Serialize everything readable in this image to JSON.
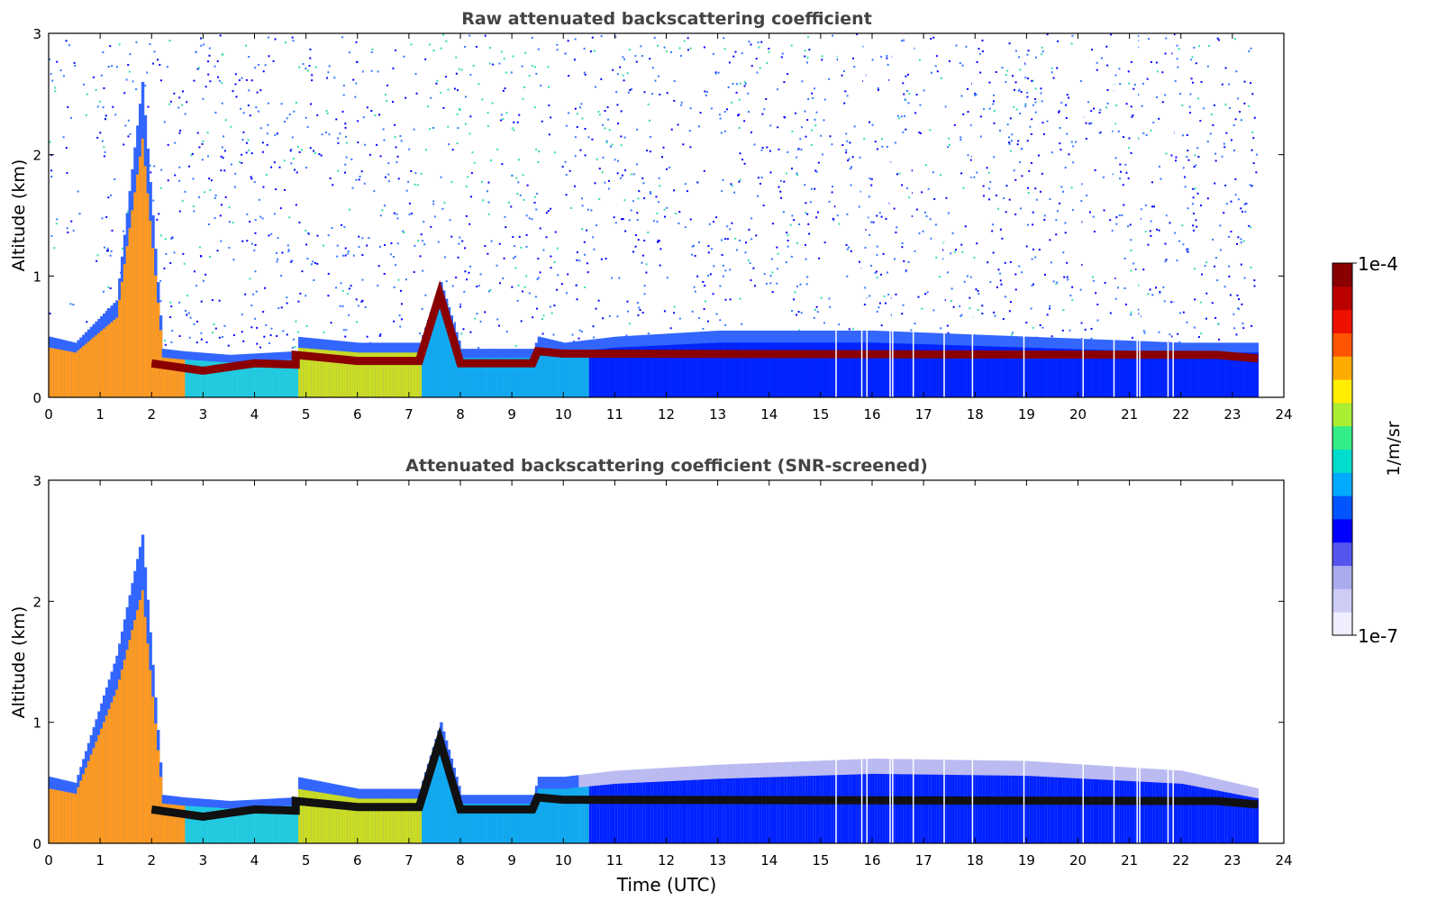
{
  "chart_data": [
    {
      "type": "heatmap",
      "id": "raw",
      "title": "Raw attenuated backscattering coefficient",
      "xlabel": "",
      "ylabel": "Altitude (km)",
      "xlim": [
        0,
        24
      ],
      "ylim": [
        0,
        3
      ],
      "xticks": [
        "0",
        "1",
        "2",
        "3",
        "4",
        "5",
        "6",
        "7",
        "8",
        "9",
        "10",
        "11",
        "12",
        "13",
        "14",
        "15",
        "16",
        "17",
        "18",
        "19",
        "20",
        "21",
        "22",
        "23",
        "24"
      ],
      "yticks": [
        "0",
        "1",
        "2",
        "3"
      ],
      "data_end_hour": 23.5,
      "boundary_layer_top_km": [
        [
          0,
          0.5
        ],
        [
          0.5,
          0.45
        ],
        [
          1.3,
          0.8
        ],
        [
          1.8,
          2.6
        ],
        [
          2.2,
          0.4
        ],
        [
          2.6,
          0.38
        ],
        [
          3.5,
          0.35
        ],
        [
          4.8,
          0.38
        ],
        [
          4.8,
          0.5
        ],
        [
          6,
          0.45
        ],
        [
          7.2,
          0.45
        ],
        [
          7.6,
          0.95
        ],
        [
          8,
          0.4
        ],
        [
          9.4,
          0.4
        ],
        [
          9.5,
          0.5
        ],
        [
          10,
          0.45
        ],
        [
          11,
          0.5
        ],
        [
          13,
          0.55
        ],
        [
          16,
          0.55
        ],
        [
          19,
          0.5
        ],
        [
          22,
          0.45
        ],
        [
          23.5,
          0.45
        ]
      ],
      "dense_layer_km": [
        [
          2,
          0.28
        ],
        [
          3,
          0.22
        ],
        [
          4,
          0.28
        ],
        [
          4.8,
          0.27
        ],
        [
          4.8,
          0.35
        ],
        [
          6,
          0.3
        ],
        [
          7.2,
          0.3
        ],
        [
          7.6,
          0.85
        ],
        [
          8,
          0.28
        ],
        [
          9.4,
          0.28
        ],
        [
          9.5,
          0.38
        ],
        [
          10,
          0.36
        ],
        [
          22.7,
          0.35
        ],
        [
          23.5,
          0.32
        ]
      ],
      "data_gap_hours": [
        15.3,
        15.8,
        15.9,
        16.35,
        16.4,
        16.8,
        17.4,
        17.95,
        18.95,
        20.1,
        20.7,
        21.15,
        21.2,
        21.75,
        21.85
      ]
    },
    {
      "type": "heatmap",
      "id": "snr",
      "title": "Attenuated backscattering coefficient (SNR-screened)",
      "xlabel": "Time (UTC)",
      "ylabel": "Altitude (km)",
      "xlim": [
        0,
        24
      ],
      "ylim": [
        0,
        3
      ],
      "xticks": [
        "0",
        "1",
        "2",
        "3",
        "4",
        "5",
        "6",
        "7",
        "8",
        "9",
        "10",
        "11",
        "12",
        "13",
        "14",
        "15",
        "16",
        "17",
        "18",
        "19",
        "20",
        "21",
        "22",
        "23",
        "24"
      ],
      "yticks": [
        "0",
        "1",
        "2",
        "3"
      ],
      "data_end_hour": 23.5,
      "boundary_layer_top_km": [
        [
          0,
          0.55
        ],
        [
          0.5,
          0.5
        ],
        [
          1.3,
          1.55
        ],
        [
          1.8,
          2.55
        ],
        [
          2.2,
          0.4
        ],
        [
          2.6,
          0.38
        ],
        [
          3.5,
          0.35
        ],
        [
          4.8,
          0.38
        ],
        [
          4.8,
          0.55
        ],
        [
          6,
          0.45
        ],
        [
          7.2,
          0.45
        ],
        [
          7.6,
          1.0
        ],
        [
          8,
          0.4
        ],
        [
          9.4,
          0.4
        ],
        [
          9.5,
          0.55
        ],
        [
          10,
          0.55
        ],
        [
          11,
          0.6
        ],
        [
          13,
          0.65
        ],
        [
          16,
          0.7
        ],
        [
          19,
          0.68
        ],
        [
          22,
          0.6
        ],
        [
          23.5,
          0.45
        ]
      ],
      "dense_layer_km": [
        [
          2,
          0.28
        ],
        [
          3,
          0.22
        ],
        [
          4,
          0.28
        ],
        [
          4.8,
          0.27
        ],
        [
          4.8,
          0.35
        ],
        [
          6,
          0.3
        ],
        [
          7.2,
          0.3
        ],
        [
          7.6,
          0.85
        ],
        [
          8,
          0.28
        ],
        [
          9.4,
          0.28
        ],
        [
          9.5,
          0.38
        ],
        [
          10,
          0.36
        ],
        [
          22.7,
          0.35
        ],
        [
          23.5,
          0.32
        ]
      ],
      "data_gap_hours": [
        15.3,
        15.8,
        15.9,
        16.35,
        16.4,
        16.8,
        17.4,
        17.95,
        18.95,
        20.1,
        20.7,
        21.15,
        21.2,
        21.75,
        21.85
      ]
    }
  ],
  "colorbar": {
    "label": "1/m/sr",
    "max_label": "1e-4",
    "min_label": "1e-7",
    "colormap": "jet-like",
    "colors": [
      "#eeeeff",
      "#ccccf5",
      "#aaaaee",
      "#5555ee",
      "#0000ff",
      "#0055ff",
      "#00aaff",
      "#00ddcc",
      "#33ee88",
      "#aaee33",
      "#ffee00",
      "#ffaa00",
      "#ff5500",
      "#ee1100",
      "#bb0000",
      "#880000"
    ]
  }
}
